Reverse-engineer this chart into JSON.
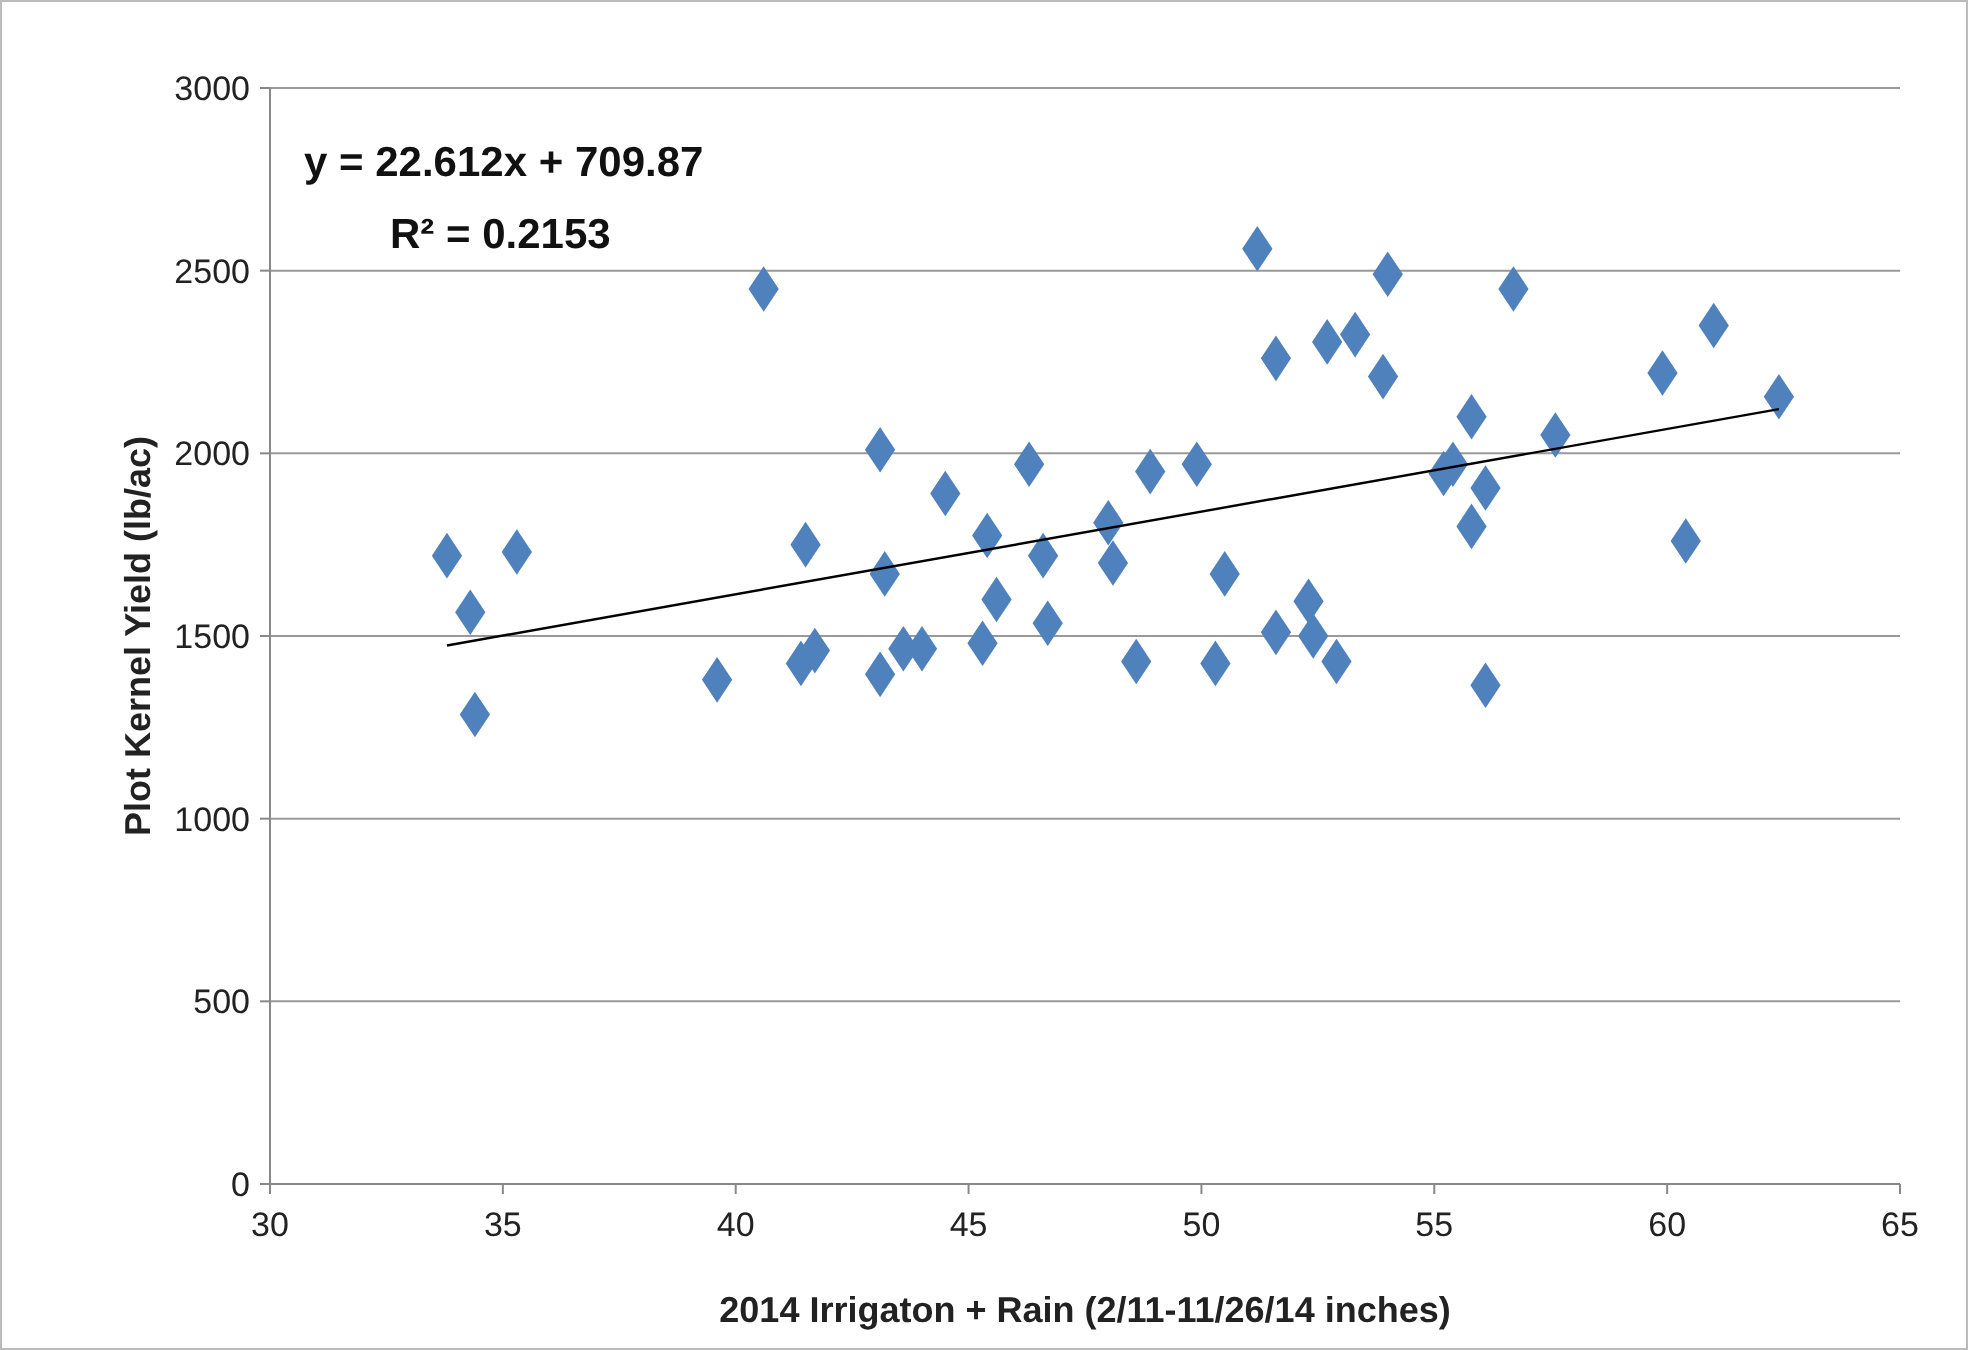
{
  "chart_data": {
    "type": "scatter",
    "xlabel": "2014 Irrigaton + Rain (2/11-11/26/14 inches)",
    "ylabel": "Plot Kernel Yield (lb/ac)",
    "annotations": [
      "y = 22.612x + 709.87",
      "R² = 0.2153"
    ],
    "xlim": [
      30,
      65
    ],
    "xticks": [
      30,
      35,
      40,
      45,
      50,
      55,
      60,
      65
    ],
    "ylim": [
      0,
      3000
    ],
    "yticks": [
      0,
      500,
      1000,
      1500,
      2000,
      2500,
      3000
    ],
    "grid": "y",
    "series": [
      {
        "color": "#4f81bd",
        "marker": "diamond",
        "x": [
          33.8,
          34.3,
          34.4,
          35.3,
          39.6,
          40.6,
          41.5,
          41.4,
          41.7,
          43.1,
          43.2,
          43.1,
          43.6,
          44.0,
          44.5,
          45.4,
          45.3,
          45.6,
          46.3,
          46.6,
          46.7,
          48.0,
          48.1,
          48.6,
          48.9,
          49.9,
          50.5,
          50.3,
          51.2,
          51.6,
          51.6,
          52.3,
          52.4,
          52.9,
          52.7,
          53.3,
          54.0,
          53.9,
          55.2,
          55.4,
          55.8,
          56.1,
          55.8,
          56.1,
          56.7,
          57.6,
          59.9,
          61.0,
          60.4,
          62.4
        ],
        "values": [
          1720,
          1565,
          1285,
          1730,
          1380,
          2450,
          1750,
          1425,
          1460,
          2010,
          1670,
          1395,
          1465,
          1465,
          1890,
          1775,
          1480,
          1600,
          1970,
          1720,
          1535,
          1810,
          1700,
          1430,
          1950,
          1970,
          1670,
          1425,
          2560,
          2260,
          1510,
          1595,
          1500,
          1430,
          2305,
          2325,
          2490,
          2210,
          1945,
          1970,
          2100,
          1905,
          1800,
          1365,
          2450,
          2050,
          2220,
          2350,
          1760,
          2155
        ]
      },
      {
        "type": "line",
        "color": "#000000",
        "x": [
          33.8,
          62.4
        ],
        "values": [
          1474,
          2121
        ],
        "marker": "none"
      }
    ]
  }
}
